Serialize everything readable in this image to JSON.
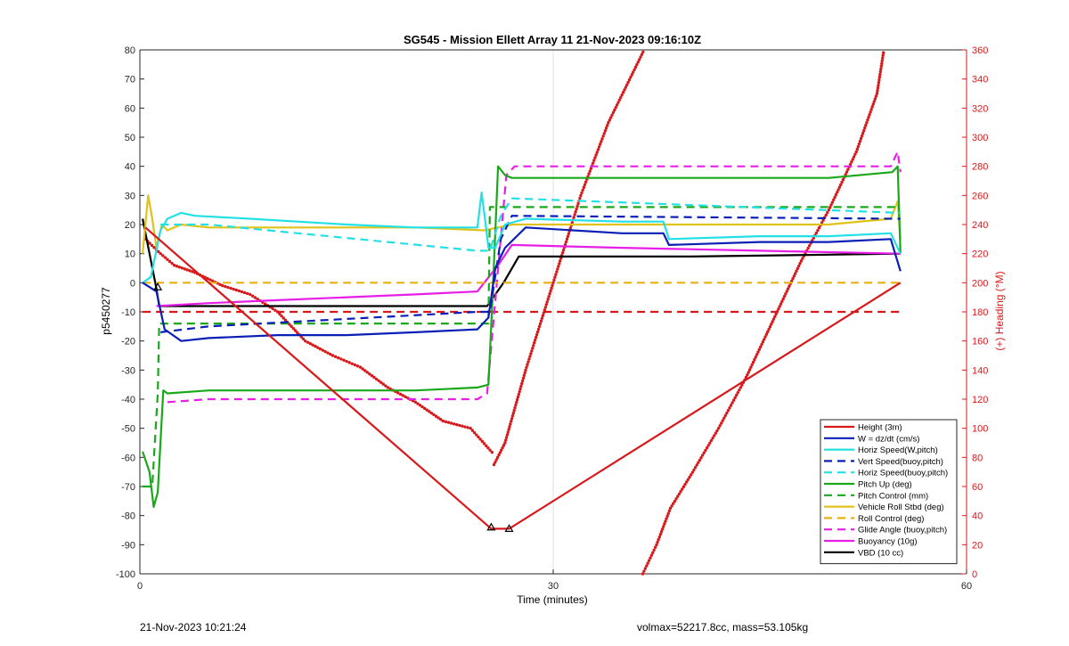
{
  "footer": {
    "timestamp": "21-Nov-2023 10:21:24",
    "vol_mass": "volmax=52217.8cc, mass=53.105kg"
  },
  "chart_data": {
    "type": "line",
    "title": "SG545 - Mission Ellett Array 11 21-Nov-2023 09:16:10Z",
    "xlabel": "Time (minutes)",
    "ylabel": "p5450277",
    "y2label": "(+) Heading (°M)",
    "xlim": [
      0,
      60
    ],
    "ylim": [
      -100,
      80
    ],
    "y2lim": [
      0,
      360
    ],
    "xticks": [
      0,
      30,
      60
    ],
    "yticks": [
      -100,
      -90,
      -80,
      -70,
      -60,
      -50,
      -40,
      -30,
      -20,
      -10,
      0,
      10,
      20,
      30,
      40,
      50,
      60,
      70,
      80
    ],
    "y2ticks": [
      0,
      20,
      40,
      60,
      80,
      100,
      120,
      140,
      160,
      180,
      200,
      220,
      240,
      260,
      280,
      300,
      320,
      340,
      360
    ],
    "grid": "x-only",
    "legend_position": "bottom-right",
    "colors": {
      "height": "#d7191c",
      "w": "#0a1fb5",
      "horiz_w": "#22e0e6",
      "vert_buoy": "#0a1fb5",
      "horiz_buoy": "#22e0e6",
      "pitch_up": "#1aa81a",
      "pitch_control": "#1aa81a",
      "roll": "#e0c21a",
      "roll_control": "#e8b010",
      "glide": "#e61ee6",
      "buoyancy": "#e61ee6",
      "vbd": "#000000",
      "heading": "#d7191c"
    },
    "series": [
      {
        "name": "Height (3m)",
        "key": "height",
        "style": "solid",
        "x": [
          0.4,
          25.5,
          26.8,
          55.2
        ],
        "y": [
          19,
          -84.5,
          -84.5,
          0
        ]
      },
      {
        "name": "W = dz/dt (cm/s)",
        "key": "w",
        "style": "solid",
        "x": [
          0.2,
          1.2,
          1.8,
          3,
          5,
          10,
          15,
          20,
          24.5,
          25.3,
          25.8,
          26.5,
          28,
          35,
          38,
          38.4,
          45,
          50,
          54.5,
          55.2
        ],
        "y": [
          0,
          -3,
          -16,
          -20,
          -19,
          -18,
          -18,
          -17,
          -16,
          -12,
          5,
          12,
          19,
          17,
          17,
          13,
          14,
          14,
          15,
          4
        ]
      },
      {
        "name": "Horiz Speed(W,pitch)",
        "key": "horiz_w",
        "style": "solid",
        "x": [
          0.2,
          0.8,
          1.5,
          2,
          3,
          4,
          8,
          15,
          20,
          24.5,
          24.8,
          25.1,
          25.3,
          25.8,
          26.5,
          28,
          35,
          38,
          38.4,
          45,
          50,
          54.5,
          55.2
        ],
        "y": [
          0,
          2,
          18,
          22,
          24,
          23,
          22,
          20,
          19,
          19,
          31,
          20,
          12,
          12,
          20,
          22,
          21,
          21,
          15,
          16,
          16,
          17,
          10
        ]
      },
      {
        "name": "Vert Speed(buoy,pitch)",
        "key": "vert_buoy",
        "style": "dashed",
        "x": [
          1.5,
          5,
          24.5,
          25.4,
          26.2,
          27,
          55.2
        ],
        "y": [
          -17,
          -15,
          -10,
          -10,
          15,
          23,
          22
        ]
      },
      {
        "name": "Horiz Speed(buoy,pitch)",
        "key": "horiz_buoy",
        "style": "dashed",
        "x": [
          1.5,
          5,
          24.5,
          25.4,
          26.2,
          27,
          55.2
        ],
        "y": [
          20,
          20,
          11,
          11,
          23,
          29,
          24
        ]
      },
      {
        "name": "Pitch Up (deg)",
        "key": "pitch_up",
        "style": "solid",
        "x": [
          0.2,
          0.7,
          1.0,
          1.3,
          1.7,
          2,
          5,
          10,
          15,
          20,
          24.5,
          25.3,
          25.6,
          26.0,
          26.5,
          27,
          30,
          40,
          50,
          54.6,
          55.0,
          55.2
        ],
        "y": [
          -58,
          -65,
          -77,
          -72,
          -37,
          -38,
          -37,
          -37,
          -37,
          -37,
          -36,
          -35,
          -5,
          40,
          37,
          36,
          36,
          36,
          36,
          38,
          40,
          10
        ]
      },
      {
        "name": "Pitch Control (mm)",
        "key": "pitch_control",
        "style": "dashed",
        "x": [
          0.2,
          0.9,
          1.3,
          1.4,
          24.8,
          25.3,
          25.4,
          55.2
        ],
        "y": [
          -70,
          -70,
          -38,
          -14,
          -14,
          -14,
          26,
          26
        ]
      },
      {
        "name": "Vehicle Roll Stbd (deg)",
        "key": "roll",
        "style": "solid",
        "x": [
          0.2,
          0.6,
          0.9,
          1.2,
          1.6,
          2,
          3,
          5,
          10,
          15,
          20,
          25,
          26,
          27,
          30,
          40,
          50,
          54.5,
          55.0,
          55.2
        ],
        "y": [
          10,
          30,
          22,
          12,
          20,
          18,
          20,
          19,
          19,
          19,
          19,
          18,
          19,
          20,
          20,
          20,
          20,
          22,
          28,
          15
        ]
      },
      {
        "name": "Roll Control (deg)",
        "key": "roll_control",
        "style": "dashed",
        "x": [
          0.2,
          55.2
        ],
        "y": [
          0,
          0
        ]
      },
      {
        "name": "Glide Angle (buoy,pitch)",
        "key": "glide",
        "style": "dashed",
        "x": [
          2,
          5,
          10,
          20,
          24.5,
          25.2,
          26.6,
          27.2,
          35,
          45,
          54.5,
          55.0,
          55.2
        ],
        "y": [
          -41,
          -40,
          -40,
          -40,
          -40,
          -38,
          37,
          40,
          40,
          40,
          40,
          45,
          38
        ]
      },
      {
        "name": "Buoyancy (10g)",
        "key": "buoyancy",
        "style": "solid",
        "x": [
          1.2,
          5,
          10,
          20,
          24.5,
          26.0,
          27,
          35,
          45,
          55.2
        ],
        "y": [
          -8,
          -7,
          -6,
          -4,
          -3,
          6,
          13,
          12,
          11,
          10
        ]
      },
      {
        "name": "VBD (10 cc)",
        "key": "vbd",
        "style": "solid",
        "x": [
          0.2,
          1.2,
          1.4,
          24.5,
          25.2,
          26.4,
          27.5,
          40,
          55.2
        ],
        "y": [
          22,
          -2,
          -8,
          -8,
          -8,
          0,
          9,
          9,
          10
        ]
      }
    ],
    "reference_lines": [
      {
        "key": "height",
        "y": -10,
        "style": "dashed",
        "x_range": [
          0.2,
          55.2
        ]
      }
    ],
    "heading_series": {
      "axis": "right",
      "style": "dots",
      "segments": [
        {
          "x": [
            0.4,
            1.5,
            2.5,
            4,
            6,
            8,
            10,
            12,
            14,
            16,
            18,
            20,
            22,
            24,
            25.7
          ],
          "y": [
            230,
            220,
            212,
            207,
            198,
            192,
            180,
            160,
            150,
            142,
            128,
            118,
            105,
            100,
            82
          ]
        },
        {
          "x": [
            25.7,
            26.5,
            28,
            30,
            32,
            34,
            36.7
          ],
          "y": [
            75,
            90,
            140,
            200,
            260,
            310,
            362
          ]
        },
        {
          "x": [
            36.5,
            37.5,
            38.5,
            40,
            42,
            44,
            46,
            48,
            50,
            52,
            53.5,
            54.0
          ],
          "y": [
            0,
            20,
            45,
            68,
            100,
            135,
            175,
            215,
            250,
            290,
            330,
            360
          ]
        }
      ]
    },
    "markers": [
      {
        "x": 1.3,
        "y": -1.5
      },
      {
        "x": 25.5,
        "y": -84
      },
      {
        "x": 26.8,
        "y": -84.5
      }
    ]
  }
}
